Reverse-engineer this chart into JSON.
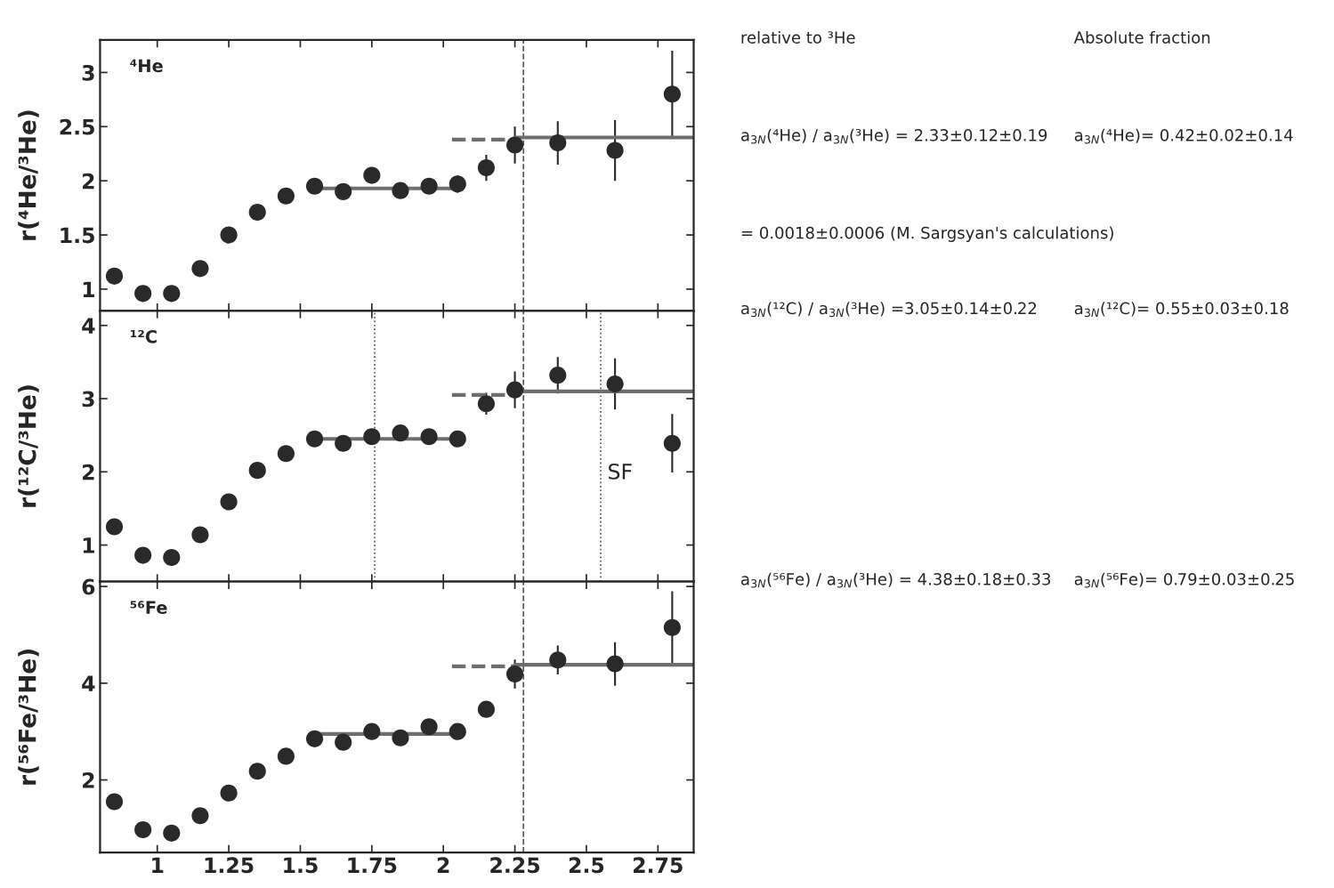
{
  "chart_data": [
    {
      "type": "scatter",
      "title": "⁴He",
      "ylabel": "r(⁴He/³He)",
      "xlim": [
        0.8,
        2.875
      ],
      "xticks": [
        1,
        1.25,
        1.5,
        1.75,
        2,
        2.25,
        2.5,
        2.75
      ],
      "ylim": [
        0.8,
        3.3
      ],
      "yticks": [
        1,
        1.5,
        2,
        2.5,
        3
      ],
      "tick_labels": "y",
      "grid": false,
      "legend": false,
      "series": [
        {
          "type": "scatter",
          "color": "#2a2a2a",
          "x": [
            0.85,
            0.95,
            1.05,
            1.15,
            1.25,
            1.35,
            1.45,
            1.55,
            1.65,
            1.75,
            1.85,
            1.95,
            2.05,
            2.15,
            2.25,
            2.4,
            2.6,
            2.8
          ],
          "marker": "circle",
          "values": [
            1.12,
            0.96,
            0.96,
            1.19,
            1.5,
            1.71,
            1.86,
            1.95,
            1.9,
            2.05,
            1.91,
            1.95,
            1.97,
            2.12,
            2.33,
            2.35,
            2.28,
            2.8
          ],
          "errors": [
            null,
            null,
            null,
            null,
            null,
            null,
            null,
            null,
            null,
            null,
            null,
            null,
            0.08,
            0.12,
            0.17,
            0.2,
            0.28,
            0.4
          ]
        },
        {
          "type": "line",
          "color": "#6e6e6e",
          "line_style": "solid",
          "x": [
            1.55,
            2.05
          ],
          "values": [
            1.93,
            1.93
          ]
        },
        {
          "type": "line",
          "color": "#6e6e6e",
          "line_style": "dashed",
          "x": [
            2.03,
            2.25
          ],
          "values": [
            2.38,
            2.38
          ]
        },
        {
          "type": "line",
          "color": "#6e6e6e",
          "line_style": "solid",
          "x": [
            2.25,
            2.87
          ],
          "values": [
            2.4,
            2.4
          ]
        }
      ],
      "ref_lines": [
        {
          "axis": "x",
          "value": 2.28,
          "line_style": "dashed",
          "color": "#555555"
        }
      ],
      "annotations": [
        "relative to ³He",
        "Absolute fraction",
        "a$_{3N}$(⁴He) / a$_{3N}$(³He) = 2.33±0.12±0.19",
        "a$_{3N}$(⁴He)= 0.42±0.02±0.14",
        "= 0.0018±0.0006 (M. Sargsyan's calculations)"
      ]
    },
    {
      "type": "scatter",
      "title": "¹²C",
      "ylabel": "r(¹²C/³He)",
      "xlim": [
        0.8,
        2.875
      ],
      "xticks": [
        1,
        1.25,
        1.5,
        1.75,
        2,
        2.25,
        2.5,
        2.75
      ],
      "ylim": [
        0.5,
        4.2
      ],
      "yticks": [
        1,
        2,
        3,
        4
      ],
      "tick_labels": "y",
      "grid": false,
      "legend": false,
      "series": [
        {
          "type": "scatter",
          "color": "#2a2a2a",
          "x": [
            0.85,
            0.95,
            1.05,
            1.15,
            1.25,
            1.35,
            1.45,
            1.55,
            1.65,
            1.75,
            1.85,
            1.95,
            2.05,
            2.15,
            2.25,
            2.4,
            2.6,
            2.8
          ],
          "marker": "circle",
          "values": [
            1.25,
            0.86,
            0.83,
            1.14,
            1.59,
            2.02,
            2.25,
            2.45,
            2.39,
            2.48,
            2.53,
            2.48,
            2.45,
            2.93,
            3.12,
            3.32,
            3.2,
            2.39
          ],
          "errors": [
            null,
            null,
            null,
            null,
            null,
            null,
            null,
            null,
            null,
            null,
            null,
            null,
            0.08,
            0.15,
            0.25,
            0.25,
            0.35,
            0.4
          ]
        },
        {
          "type": "line",
          "color": "#6e6e6e",
          "line_style": "solid",
          "x": [
            1.55,
            2.05
          ],
          "values": [
            2.45,
            2.45
          ]
        },
        {
          "type": "line",
          "color": "#6e6e6e",
          "line_style": "dashed",
          "x": [
            2.03,
            2.25
          ],
          "values": [
            3.05,
            3.05
          ]
        },
        {
          "type": "line",
          "color": "#6e6e6e",
          "line_style": "solid",
          "x": [
            2.25,
            2.87
          ],
          "values": [
            3.1,
            3.1
          ]
        }
      ],
      "ref_lines": [
        {
          "axis": "x",
          "value": 2.28,
          "line_style": "dashed",
          "color": "#555555"
        },
        {
          "axis": "x",
          "value": 1.76,
          "line_style": "dotted",
          "color": "#555555"
        },
        {
          "axis": "x",
          "value": 2.55,
          "line_style": "dotted",
          "color": "#555555",
          "label": "SF"
        }
      ],
      "annotations": [
        "a$_{3N}$(¹²C) / a$_{3N}$(³He) =3.05±0.14±0.22",
        "a$_{3N}$(¹²C)= 0.55±0.03±0.18"
      ]
    },
    {
      "type": "scatter",
      "title": "⁵⁶Fe",
      "ylabel": "r(⁵⁶Fe/³He)",
      "xlim": [
        0.8,
        2.875
      ],
      "xticks": [
        1,
        1.25,
        1.5,
        1.75,
        2,
        2.25,
        2.5,
        2.75
      ],
      "ylim": [
        0.5,
        6.1
      ],
      "yticks": [
        2,
        4,
        6
      ],
      "grid": false,
      "legend": false,
      "series": [
        {
          "type": "scatter",
          "color": "#2a2a2a",
          "x": [
            0.85,
            0.95,
            1.05,
            1.15,
            1.25,
            1.35,
            1.45,
            1.55,
            1.65,
            1.75,
            1.85,
            1.95,
            2.05,
            2.15,
            2.25,
            2.4,
            2.6,
            2.8
          ],
          "marker": "circle",
          "values": [
            1.55,
            0.97,
            0.9,
            1.26,
            1.73,
            2.18,
            2.49,
            2.85,
            2.78,
            3.0,
            2.87,
            3.1,
            3.0,
            3.46,
            4.19,
            4.48,
            4.4,
            5.15
          ],
          "errors": [
            null,
            null,
            null,
            null,
            null,
            null,
            null,
            null,
            null,
            null,
            null,
            null,
            null,
            0.15,
            0.3,
            0.3,
            0.45,
            0.75
          ]
        },
        {
          "type": "line",
          "color": "#6e6e6e",
          "line_style": "solid",
          "x": [
            1.55,
            2.05
          ],
          "values": [
            2.95,
            2.95
          ]
        },
        {
          "type": "line",
          "color": "#6e6e6e",
          "line_style": "dashed",
          "x": [
            2.03,
            2.25
          ],
          "values": [
            4.35,
            4.35
          ]
        },
        {
          "type": "line",
          "color": "#6e6e6e",
          "line_style": "solid",
          "x": [
            2.25,
            2.87
          ],
          "values": [
            4.38,
            4.38
          ]
        }
      ],
      "ref_lines": [
        {
          "axis": "x",
          "value": 2.28,
          "line_style": "dashed",
          "color": "#555555"
        }
      ],
      "annotations": [
        "a$_{3N}$(⁵⁶Fe) / a$_{3N}$(³He) = 4.38±0.18±0.33",
        "a$_{3N}$(⁵⁶Fe)= 0.79±0.03±0.25"
      ]
    }
  ]
}
